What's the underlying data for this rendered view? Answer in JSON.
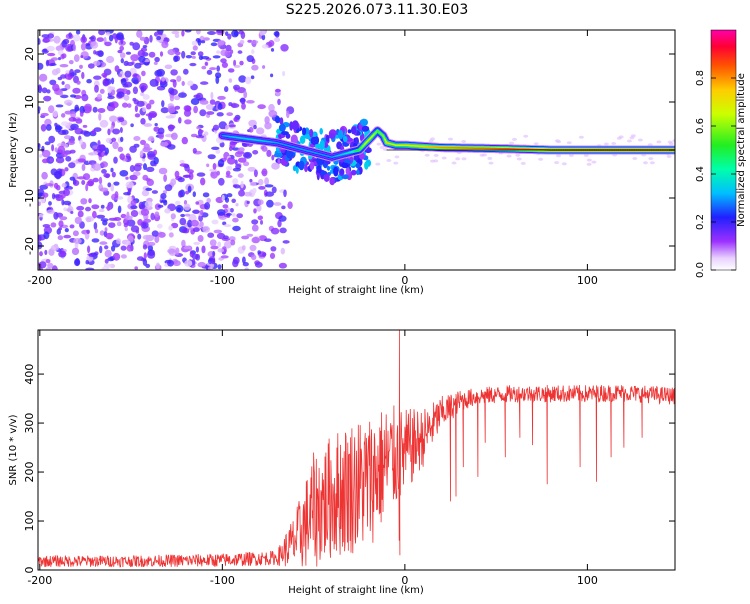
{
  "figure_title": "S225.2026.073.11.30.E03",
  "chart_data": [
    {
      "type": "heatmap",
      "name": "spectrogram",
      "xlabel": "Height of straight line (km)",
      "ylabel": "Frequency (Hz)",
      "xlim": [
        -201,
        148
      ],
      "ylim": [
        -25,
        25
      ],
      "xticks": [
        -200,
        -100,
        0,
        100
      ],
      "xtick_labels": [
        "-200",
        "-100",
        "0",
        "100"
      ],
      "yticks": [
        -20,
        -10,
        0,
        10,
        20
      ],
      "ytick_labels": [
        "-20",
        "-10",
        "0",
        "10",
        "20"
      ],
      "colorbar": {
        "label": "Normalized spectral amplitude",
        "range": [
          0.0,
          1.0
        ],
        "ticks": [
          0.0,
          0.2,
          0.4,
          0.6,
          0.8
        ],
        "tick_labels": [
          "0.0",
          "0.2",
          "0.4",
          "0.6",
          "0.8"
        ]
      },
      "ridge": {
        "description": "Dominant spectral ridge",
        "x": [
          -100,
          -90,
          -80,
          -70,
          -60,
          -50,
          -40,
          -30,
          -25,
          -20,
          -15,
          -12,
          -10,
          -5,
          0,
          20,
          50,
          80,
          110,
          148
        ],
        "frequency": [
          3,
          2.5,
          2,
          1.5,
          0.5,
          -0.5,
          -1.5,
          -0.5,
          0,
          2,
          4,
          3,
          1.5,
          1,
          1,
          0.5,
          0.3,
          0,
          0,
          0
        ],
        "amplitude": [
          0.3,
          0.35,
          0.35,
          0.3,
          0.3,
          0.3,
          0.3,
          0.4,
          0.55,
          0.7,
          0.55,
          0.6,
          0.75,
          0.65,
          0.7,
          0.8,
          0.85,
          0.9,
          0.95,
          0.95
        ]
      },
      "noise_region": {
        "x_range": [
          -201,
          -65
        ],
        "amplitude": 0.15
      }
    },
    {
      "type": "line",
      "name": "snr",
      "xlabel": "Height of straight line (km)",
      "ylabel": "SNR (10 * v/v)",
      "xlim": [
        -201,
        148
      ],
      "ylim": [
        0,
        490
      ],
      "xticks": [
        -200,
        -100,
        0,
        100
      ],
      "xtick_labels": [
        "-200",
        "-100",
        "0",
        "100"
      ],
      "yticks": [
        0,
        100,
        200,
        300,
        400
      ],
      "ytick_labels": [
        "0",
        "100",
        "200",
        "300",
        "400"
      ],
      "color": "#ee3333",
      "envelope": {
        "x": [
          -201,
          -150,
          -100,
          -70,
          -60,
          -50,
          -40,
          -30,
          -20,
          -10,
          0,
          10,
          20,
          30,
          40,
          60,
          80,
          100,
          120,
          148
        ],
        "median": [
          18,
          18,
          20,
          25,
          60,
          120,
          150,
          170,
          180,
          220,
          240,
          270,
          320,
          345,
          355,
          360,
          360,
          360,
          362,
          355
        ],
        "spread": [
          12,
          12,
          14,
          15,
          60,
          120,
          130,
          140,
          140,
          120,
          90,
          60,
          35,
          22,
          18,
          18,
          18,
          18,
          18,
          18
        ]
      },
      "spike": {
        "x": -3,
        "value": 490
      },
      "dips": [
        {
          "x": 25,
          "value": 140
        },
        {
          "x": 28,
          "value": 150
        },
        {
          "x": 32,
          "value": 210
        },
        {
          "x": 40,
          "value": 190
        },
        {
          "x": 44,
          "value": 260
        },
        {
          "x": 55,
          "value": 230
        },
        {
          "x": 63,
          "value": 270
        },
        {
          "x": 70,
          "value": 255
        },
        {
          "x": 78,
          "value": 175
        },
        {
          "x": 96,
          "value": 210
        },
        {
          "x": 105,
          "value": 180
        },
        {
          "x": 113,
          "value": 230
        },
        {
          "x": 120,
          "value": 250
        },
        {
          "x": 130,
          "value": 270
        }
      ]
    }
  ]
}
